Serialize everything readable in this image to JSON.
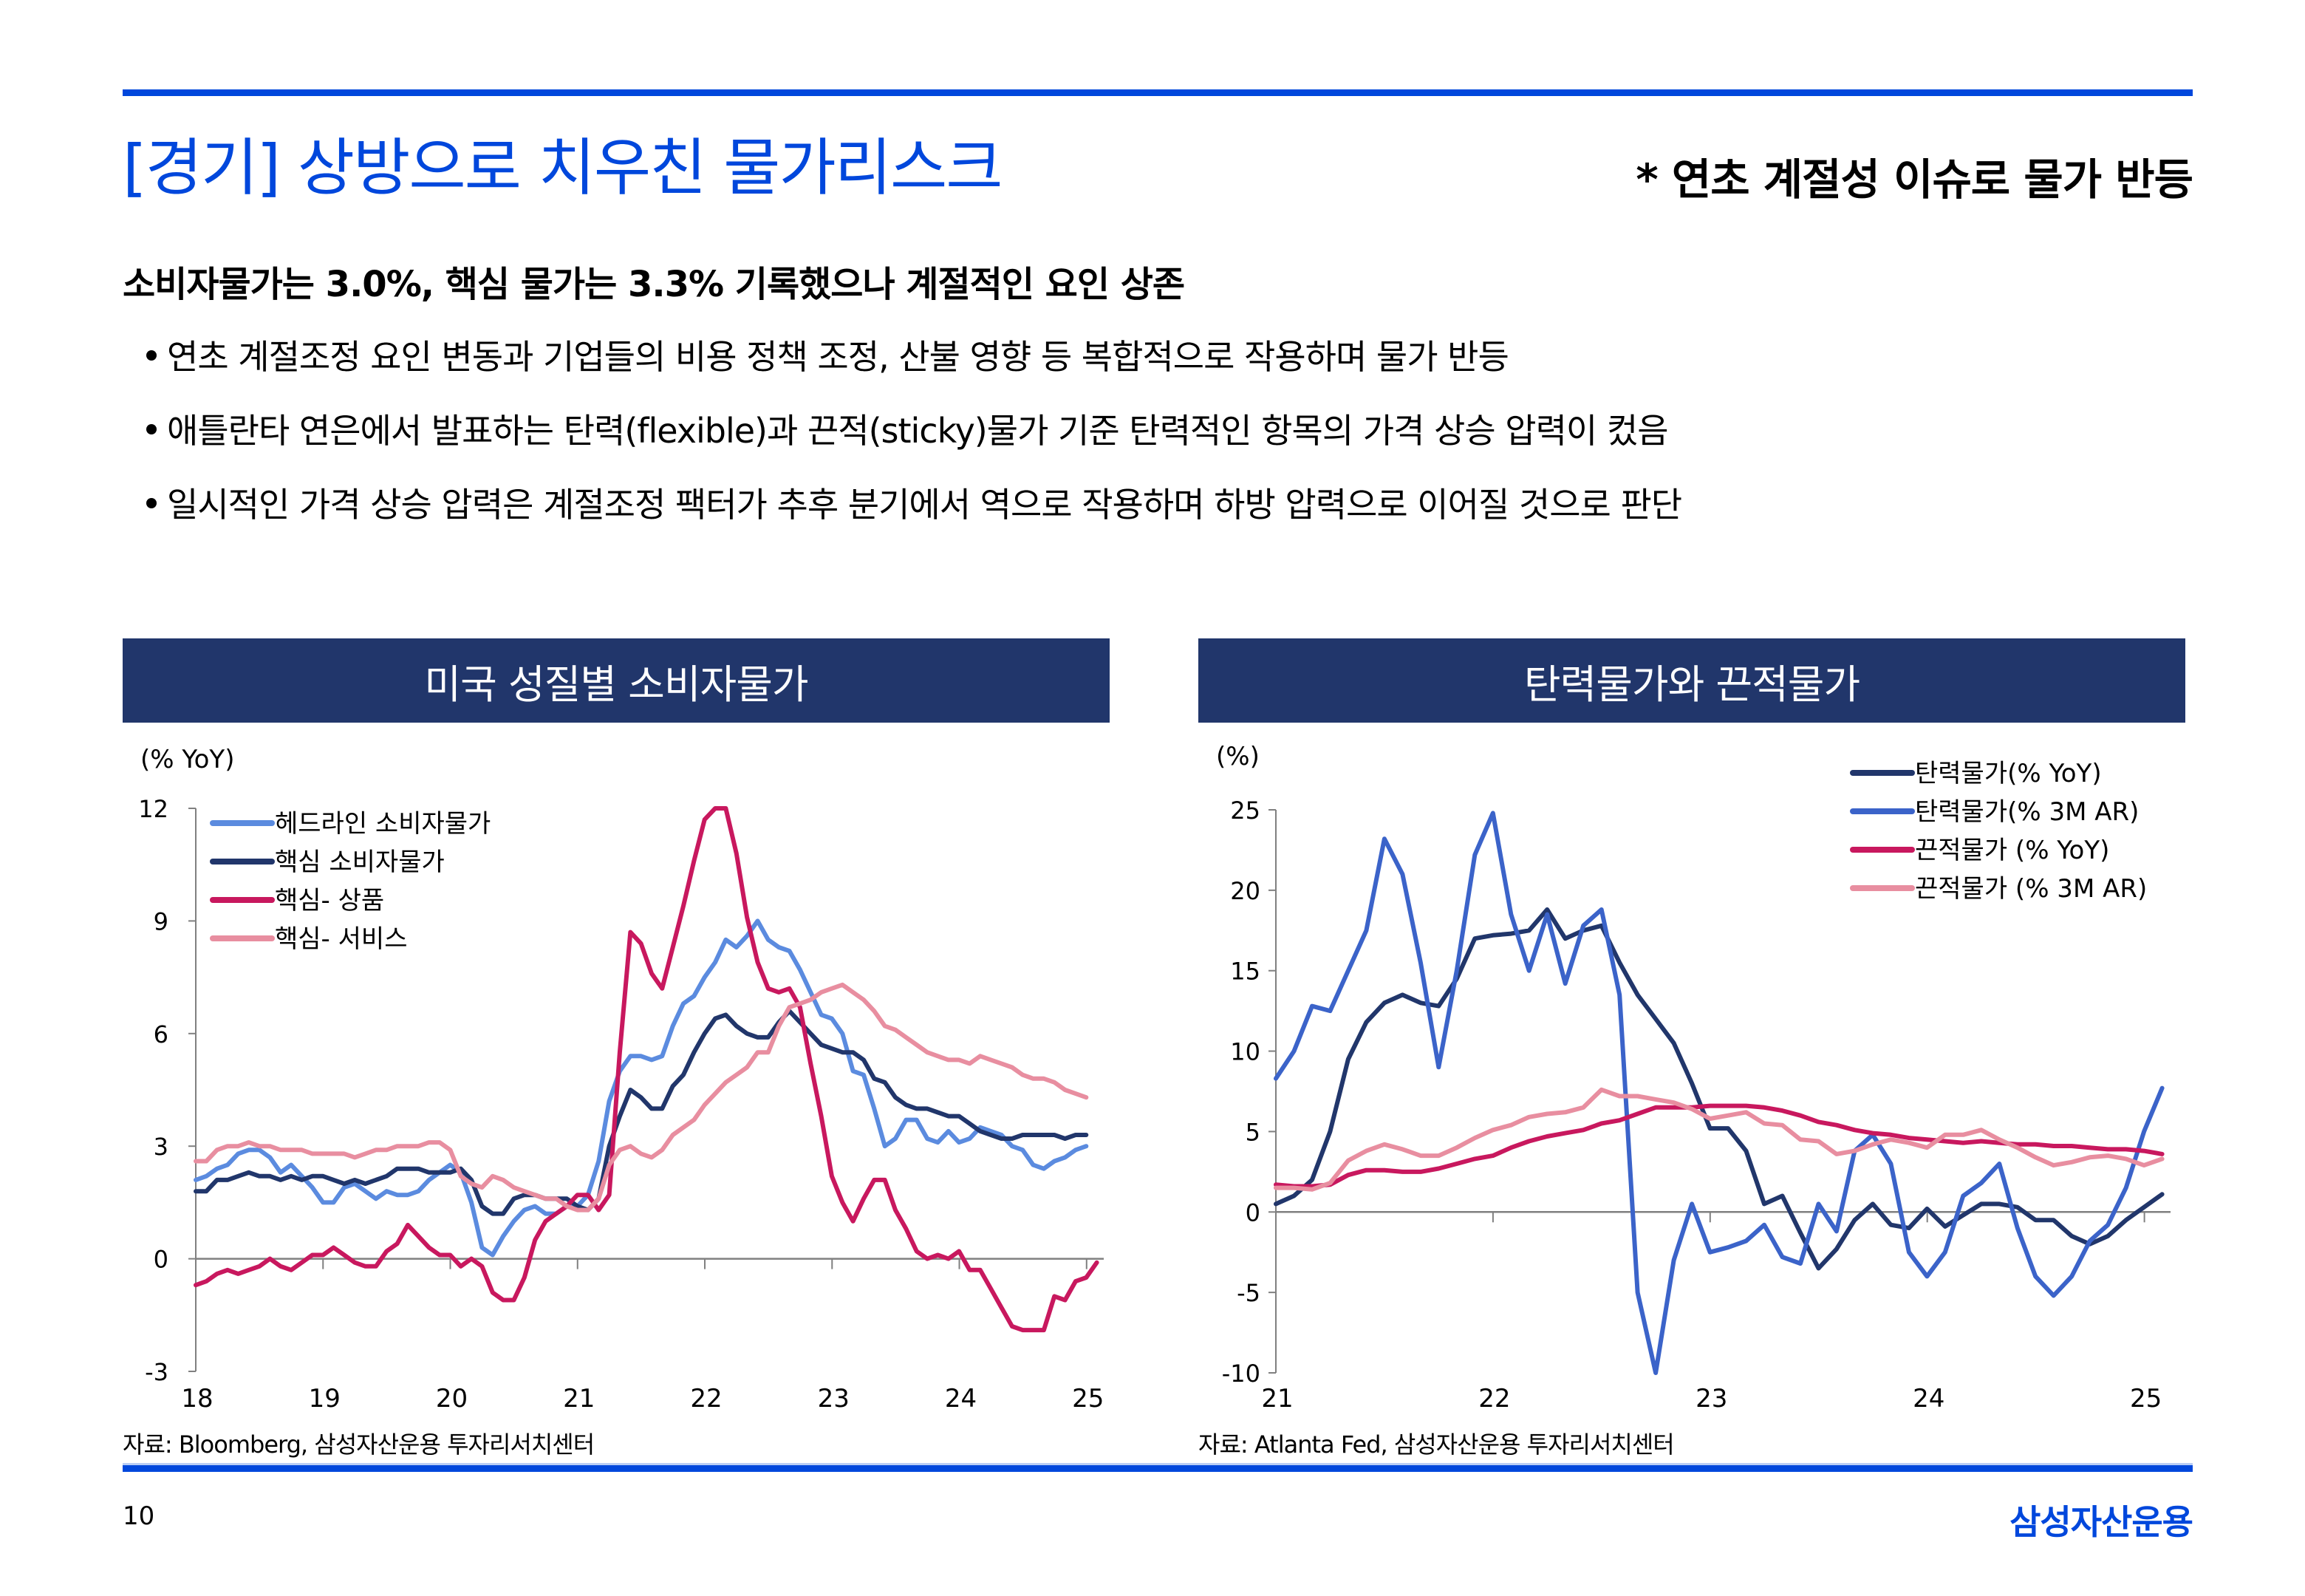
{
  "header": {
    "title": "[경기] 상방으로 치우친 물가리스크",
    "note": "* 연초 계절성 이슈로 물가 반등"
  },
  "summary": {
    "headline": "소비자물가는 3.0%, 핵심 물가는 3.3% 기록했으나 계절적인 요인 상존",
    "bullets": [
      "연초 계절조정 요인 변동과 기업들의 비용 정책 조정, 산불 영향 등 복합적으로 작용하며 물가 반등",
      "애틀란타 연은에서 발표하는 탄력(flexible)과 끈적(sticky)물가 기준 탄력적인 항목의 가격 상승 압력이 컸음",
      "일시적인 가격 상승 압력은 계절조정 팩터가 추후 분기에서 역으로 작용하며 하방 압력으로 이어질 것으로 판단"
    ]
  },
  "footer": {
    "page_number": "10",
    "brand": "삼성자산운용"
  },
  "chart_data": [
    {
      "type": "line",
      "title": "미국 성질별 소비자물가",
      "ylabel": "(% YoY)",
      "xlabel": "",
      "ylim": [
        -3,
        12
      ],
      "yticks": [
        "-3",
        "0",
        "3",
        "6",
        "9",
        "12"
      ],
      "xlim": [
        2018,
        2025.1
      ],
      "xticks": [
        "18",
        "19",
        "20",
        "21",
        "22",
        "23",
        "24",
        "25"
      ],
      "legend": "top-left",
      "source": "자료: Bloomberg, 삼성자산운용 투자리서치센터",
      "series": [
        {
          "name": "헤드라인 소비자물가",
          "color": "#5b8bdf",
          "x_start": 2018.0,
          "step": 0.0833,
          "values": [
            2.1,
            2.2,
            2.4,
            2.5,
            2.8,
            2.9,
            2.9,
            2.7,
            2.3,
            2.5,
            2.2,
            1.9,
            1.5,
            1.5,
            1.9,
            2.0,
            1.8,
            1.6,
            1.8,
            1.7,
            1.7,
            1.8,
            2.1,
            2.3,
            2.5,
            2.3,
            1.5,
            0.3,
            0.1,
            0.6,
            1.0,
            1.3,
            1.4,
            1.2,
            1.2,
            1.4,
            1.4,
            1.7,
            2.6,
            4.2,
            5.0,
            5.4,
            5.4,
            5.3,
            5.4,
            6.2,
            6.8,
            7.0,
            7.5,
            7.9,
            8.5,
            8.3,
            8.6,
            9.0,
            8.5,
            8.3,
            8.2,
            7.7,
            7.1,
            6.5,
            6.4,
            6.0,
            5.0,
            4.9,
            4.0,
            3.0,
            3.2,
            3.7,
            3.7,
            3.2,
            3.1,
            3.4,
            3.1,
            3.2,
            3.5,
            3.4,
            3.3,
            3.0,
            2.9,
            2.5,
            2.4,
            2.6,
            2.7,
            2.9,
            3.0
          ]
        },
        {
          "name": "핵심 소비자물가",
          "color": "#21366b",
          "x_start": 2018.0,
          "step": 0.0833,
          "values": [
            1.8,
            1.8,
            2.1,
            2.1,
            2.2,
            2.3,
            2.2,
            2.2,
            2.1,
            2.2,
            2.1,
            2.2,
            2.2,
            2.1,
            2.0,
            2.1,
            2.0,
            2.1,
            2.2,
            2.4,
            2.4,
            2.4,
            2.3,
            2.3,
            2.3,
            2.4,
            2.1,
            1.4,
            1.2,
            1.2,
            1.6,
            1.7,
            1.7,
            1.6,
            1.6,
            1.6,
            1.4,
            1.3,
            1.6,
            3.0,
            3.8,
            4.5,
            4.3,
            4.0,
            4.0,
            4.6,
            4.9,
            5.5,
            6.0,
            6.4,
            6.5,
            6.2,
            6.0,
            5.9,
            5.9,
            6.3,
            6.6,
            6.3,
            6.0,
            5.7,
            5.6,
            5.5,
            5.5,
            5.3,
            4.8,
            4.7,
            4.3,
            4.1,
            4.0,
            4.0,
            3.9,
            3.8,
            3.8,
            3.6,
            3.4,
            3.3,
            3.2,
            3.2,
            3.3,
            3.3,
            3.3,
            3.3,
            3.2,
            3.3,
            3.3
          ]
        },
        {
          "name": "핵심- 상품",
          "color": "#c8185e",
          "x_start": 2018.0,
          "step": 0.0833,
          "values": [
            -0.7,
            -0.6,
            -0.4,
            -0.3,
            -0.4,
            -0.3,
            -0.2,
            0.0,
            -0.2,
            -0.3,
            -0.1,
            0.1,
            0.1,
            0.3,
            0.1,
            -0.1,
            -0.2,
            -0.2,
            0.2,
            0.4,
            0.9,
            0.6,
            0.3,
            0.1,
            0.1,
            -0.2,
            0.0,
            -0.2,
            -0.9,
            -1.1,
            -1.1,
            -0.5,
            0.5,
            1.0,
            1.2,
            1.4,
            1.7,
            1.7,
            1.3,
            1.7,
            5.5,
            8.7,
            8.4,
            7.6,
            7.2,
            8.3,
            9.4,
            10.6,
            11.7,
            12.4,
            12.3,
            10.8,
            9.1,
            7.9,
            7.2,
            7.1,
            7.2,
            6.7,
            5.2,
            3.8,
            2.2,
            1.5,
            1.0,
            1.6,
            2.1,
            2.1,
            1.3,
            0.8,
            0.2,
            0.0,
            0.1,
            0.0,
            0.2,
            -0.3,
            -0.3,
            -0.8,
            -1.3,
            -1.8,
            -1.9,
            -1.9,
            -1.9,
            -1.0,
            -1.1,
            -0.6,
            -0.5,
            -0.1
          ]
        },
        {
          "name": "핵심- 서비스",
          "color": "#e88ea0",
          "x_start": 2018.0,
          "step": 0.0833,
          "values": [
            2.6,
            2.6,
            2.9,
            3.0,
            3.0,
            3.1,
            3.0,
            3.0,
            2.9,
            2.9,
            2.9,
            2.8,
            2.8,
            2.8,
            2.8,
            2.7,
            2.8,
            2.9,
            2.9,
            3.0,
            3.0,
            3.0,
            3.1,
            3.1,
            2.9,
            2.2,
            2.0,
            1.9,
            2.2,
            2.1,
            1.9,
            1.8,
            1.7,
            1.6,
            1.6,
            1.4,
            1.3,
            1.3,
            1.6,
            2.5,
            2.9,
            3.0,
            2.8,
            2.7,
            2.9,
            3.3,
            3.5,
            3.7,
            4.1,
            4.4,
            4.7,
            4.9,
            5.1,
            5.5,
            5.5,
            6.2,
            6.7,
            6.8,
            6.9,
            7.1,
            7.2,
            7.3,
            7.1,
            6.9,
            6.6,
            6.2,
            6.1,
            5.9,
            5.7,
            5.5,
            5.4,
            5.3,
            5.3,
            5.2,
            5.4,
            5.3,
            5.2,
            5.1,
            4.9,
            4.8,
            4.8,
            4.7,
            4.5,
            4.4,
            4.3
          ]
        }
      ]
    },
    {
      "type": "line",
      "title": "탄력물가와 끈적물가",
      "ylabel": "(%)",
      "xlabel": "",
      "ylim": [
        -10,
        25
      ],
      "yticks": [
        "-10",
        "-5",
        "0",
        "5",
        "10",
        "15",
        "20",
        "25"
      ],
      "xlim": [
        2021,
        2025.1
      ],
      "xticks": [
        "21",
        "22",
        "23",
        "24",
        "25"
      ],
      "legend": "top-right",
      "source": "자료: Atlanta Fed, 삼성자산운용 투자리서치센터",
      "series": [
        {
          "name": "탄력물가(% YoY)",
          "color": "#21366b",
          "x_start": 2021.0,
          "step": 0.0833,
          "values": [
            0.5,
            1.0,
            2.0,
            5.0,
            9.5,
            11.8,
            13.0,
            13.5,
            13.0,
            12.8,
            14.5,
            17.0,
            17.2,
            17.3,
            17.5,
            18.8,
            17.0,
            17.5,
            17.8,
            15.5,
            13.5,
            12.0,
            10.5,
            8.0,
            5.2,
            5.2,
            3.8,
            0.5,
            1.0,
            -1.3,
            -3.5,
            -2.3,
            -0.5,
            0.5,
            -0.8,
            -1.0,
            0.2,
            -0.9,
            -0.2,
            0.5,
            0.5,
            0.3,
            -0.5,
            -0.5,
            -1.5,
            -2.0,
            -1.5,
            -0.5,
            0.3,
            1.1
          ]
        },
        {
          "name": "탄력물가(% 3M AR)",
          "color": "#3b63c9",
          "x_start": 2021.0,
          "step": 0.0833,
          "values": [
            8.3,
            10.0,
            12.8,
            12.5,
            15.0,
            17.5,
            23.2,
            21.0,
            15.5,
            9.0,
            15.0,
            22.2,
            24.8,
            18.5,
            15.0,
            18.5,
            14.2,
            17.8,
            18.8,
            13.5,
            -5.0,
            -10.0,
            -3.0,
            0.5,
            -2.5,
            -2.2,
            -1.8,
            -0.8,
            -2.8,
            -3.2,
            0.5,
            -1.2,
            3.8,
            4.8,
            3.0,
            -2.5,
            -4.0,
            -2.5,
            1.0,
            1.8,
            3.0,
            -1.0,
            -4.0,
            -5.2,
            -4.0,
            -1.8,
            -0.8,
            1.5,
            5.0,
            7.7
          ]
        },
        {
          "name": "끈적물가 (% YoY)",
          "color": "#c8185e",
          "x_start": 2021.0,
          "step": 0.0833,
          "values": [
            1.7,
            1.6,
            1.6,
            1.7,
            2.3,
            2.6,
            2.6,
            2.5,
            2.5,
            2.7,
            3.0,
            3.3,
            3.5,
            4.0,
            4.4,
            4.7,
            4.9,
            5.1,
            5.5,
            5.7,
            6.1,
            6.5,
            6.5,
            6.5,
            6.6,
            6.6,
            6.6,
            6.5,
            6.3,
            6.0,
            5.6,
            5.4,
            5.1,
            4.9,
            4.8,
            4.6,
            4.5,
            4.4,
            4.3,
            4.4,
            4.3,
            4.2,
            4.2,
            4.1,
            4.1,
            4.0,
            3.9,
            3.9,
            3.8,
            3.6
          ]
        },
        {
          "name": "끈적물가 (% 3M AR)",
          "color": "#e88ea0",
          "x_start": 2021.0,
          "step": 0.0833,
          "values": [
            1.5,
            1.5,
            1.4,
            1.8,
            3.2,
            3.8,
            4.2,
            3.9,
            3.5,
            3.5,
            4.0,
            4.6,
            5.1,
            5.4,
            5.9,
            6.1,
            6.2,
            6.5,
            7.6,
            7.2,
            7.2,
            7.0,
            6.8,
            6.4,
            5.8,
            6.0,
            6.2,
            5.5,
            5.4,
            4.5,
            4.4,
            3.6,
            3.8,
            4.2,
            4.5,
            4.3,
            4.0,
            4.8,
            4.8,
            5.1,
            4.5,
            4.0,
            3.4,
            2.9,
            3.1,
            3.4,
            3.5,
            3.3,
            2.9,
            3.3
          ]
        }
      ]
    }
  ]
}
